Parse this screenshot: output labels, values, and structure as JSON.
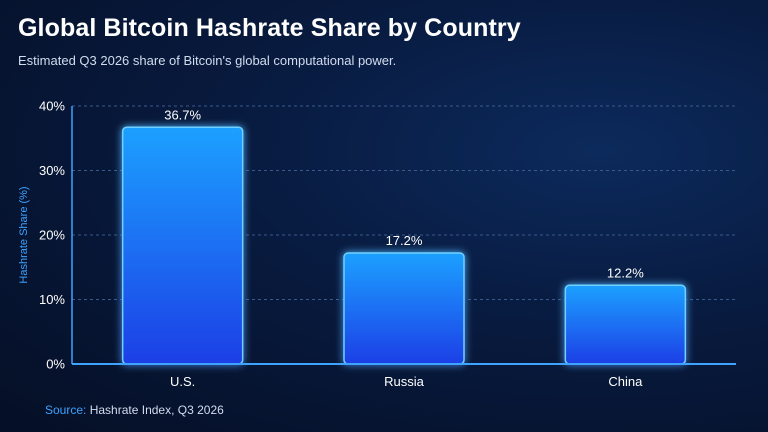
{
  "header": {
    "title": "Global Bitcoin Hashrate Share by Country",
    "subtitle": "Estimated Q3 2026 share of Bitcoin's global computational power."
  },
  "footer": {
    "source_label": "Source:",
    "source_text": "Hashrate Index, Q3 2026"
  },
  "colors": {
    "background": "#06132f",
    "bar_top": "#1fa0ff",
    "bar_bottom": "#1a3fe6",
    "bar_edge": "#6fd0ff",
    "accent": "#3ea2ff",
    "grid": "#3a5a8c"
  },
  "chart_data": {
    "type": "bar",
    "categories": [
      "U.S.",
      "Russia",
      "China"
    ],
    "values": [
      36.7,
      17.2,
      12.2
    ],
    "value_labels": [
      "36.7%",
      "17.2%",
      "12.2%"
    ],
    "ylabel": "Hashrate Share (%)",
    "ylim": [
      0,
      40
    ],
    "yticks": [
      0,
      10,
      20,
      30,
      40
    ],
    "ytick_labels": [
      "0%",
      "10%",
      "20%",
      "30%",
      "40%"
    ],
    "grid": true
  }
}
